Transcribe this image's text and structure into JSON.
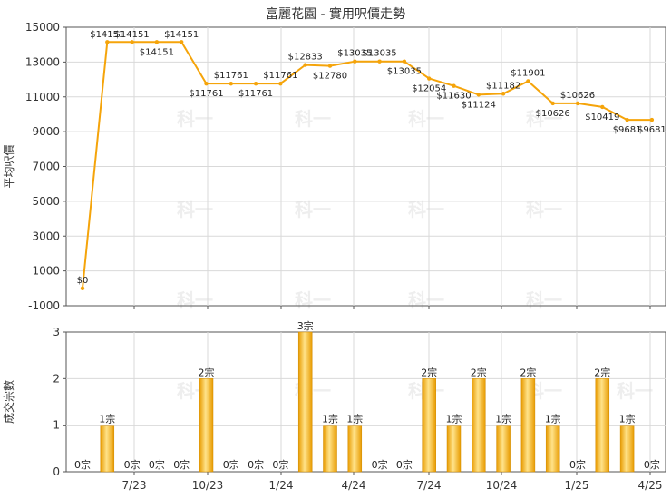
{
  "title": "富麗花園 - 實用呎價走勢",
  "colors": {
    "line": "#f5a40a",
    "bar_dark": "#e89b00",
    "bar_light": "#ffe38a",
    "grid": "#d9d9d9",
    "axis": "#555555",
    "watermark": "#eeeeee"
  },
  "watermark_text": "科一",
  "chart_data": [
    {
      "type": "line",
      "title": "富麗花園 - 實用呎價走勢",
      "ylabel": "平均呎價",
      "ylim": [
        -1000,
        15000
      ],
      "yticks": [
        "-1000",
        "1000",
        "3000",
        "5000",
        "7000",
        "9000",
        "11000",
        "13000",
        "15000"
      ],
      "grid": true,
      "x_tick_labels": [
        "7/23",
        "10/23",
        "1/24",
        "4/24",
        "7/24",
        "10/24",
        "1/25",
        "4/25"
      ],
      "values": [
        0,
        14151,
        14151,
        14151,
        14151,
        11761,
        11761,
        11761,
        11761,
        12833,
        12780,
        13035,
        13035,
        13035,
        12054,
        11630,
        11124,
        11182,
        11901,
        10626,
        10626,
        10419,
        9681,
        9681
      ],
      "value_labels": [
        "$0",
        "$14151",
        "$14151",
        "$14151",
        "$14151",
        "$11761",
        "$11761",
        "$11761",
        "$11761",
        "$12833",
        "$12780",
        "$13035",
        "$13035",
        "$13035",
        "$12054",
        "$11630",
        "$11124",
        "$11182",
        "$11901",
        "$10626",
        "$10626",
        "$10419",
        "$9681",
        "$9681"
      ]
    },
    {
      "type": "bar",
      "ylabel": "成交宗數",
      "ylim": [
        0,
        3
      ],
      "yticks": [
        "0",
        "1",
        "2",
        "3"
      ],
      "grid": true,
      "x_tick_labels": [
        "7/23",
        "10/23",
        "1/24",
        "4/24",
        "7/24",
        "10/24",
        "1/25",
        "4/25"
      ],
      "values": [
        0,
        1,
        0,
        0,
        0,
        2,
        0,
        0,
        0,
        3,
        1,
        1,
        0,
        0,
        2,
        1,
        2,
        1,
        2,
        1,
        0,
        2,
        1,
        0
      ],
      "value_labels": [
        "0宗",
        "1宗",
        "0宗",
        "0宗",
        "0宗",
        "2宗",
        "0宗",
        "0宗",
        "0宗",
        "3宗",
        "1宗",
        "1宗",
        "0宗",
        "0宗",
        "2宗",
        "1宗",
        "2宗",
        "1宗",
        "2宗",
        "1宗",
        "0宗",
        "2宗",
        "1宗",
        "0宗"
      ]
    }
  ]
}
